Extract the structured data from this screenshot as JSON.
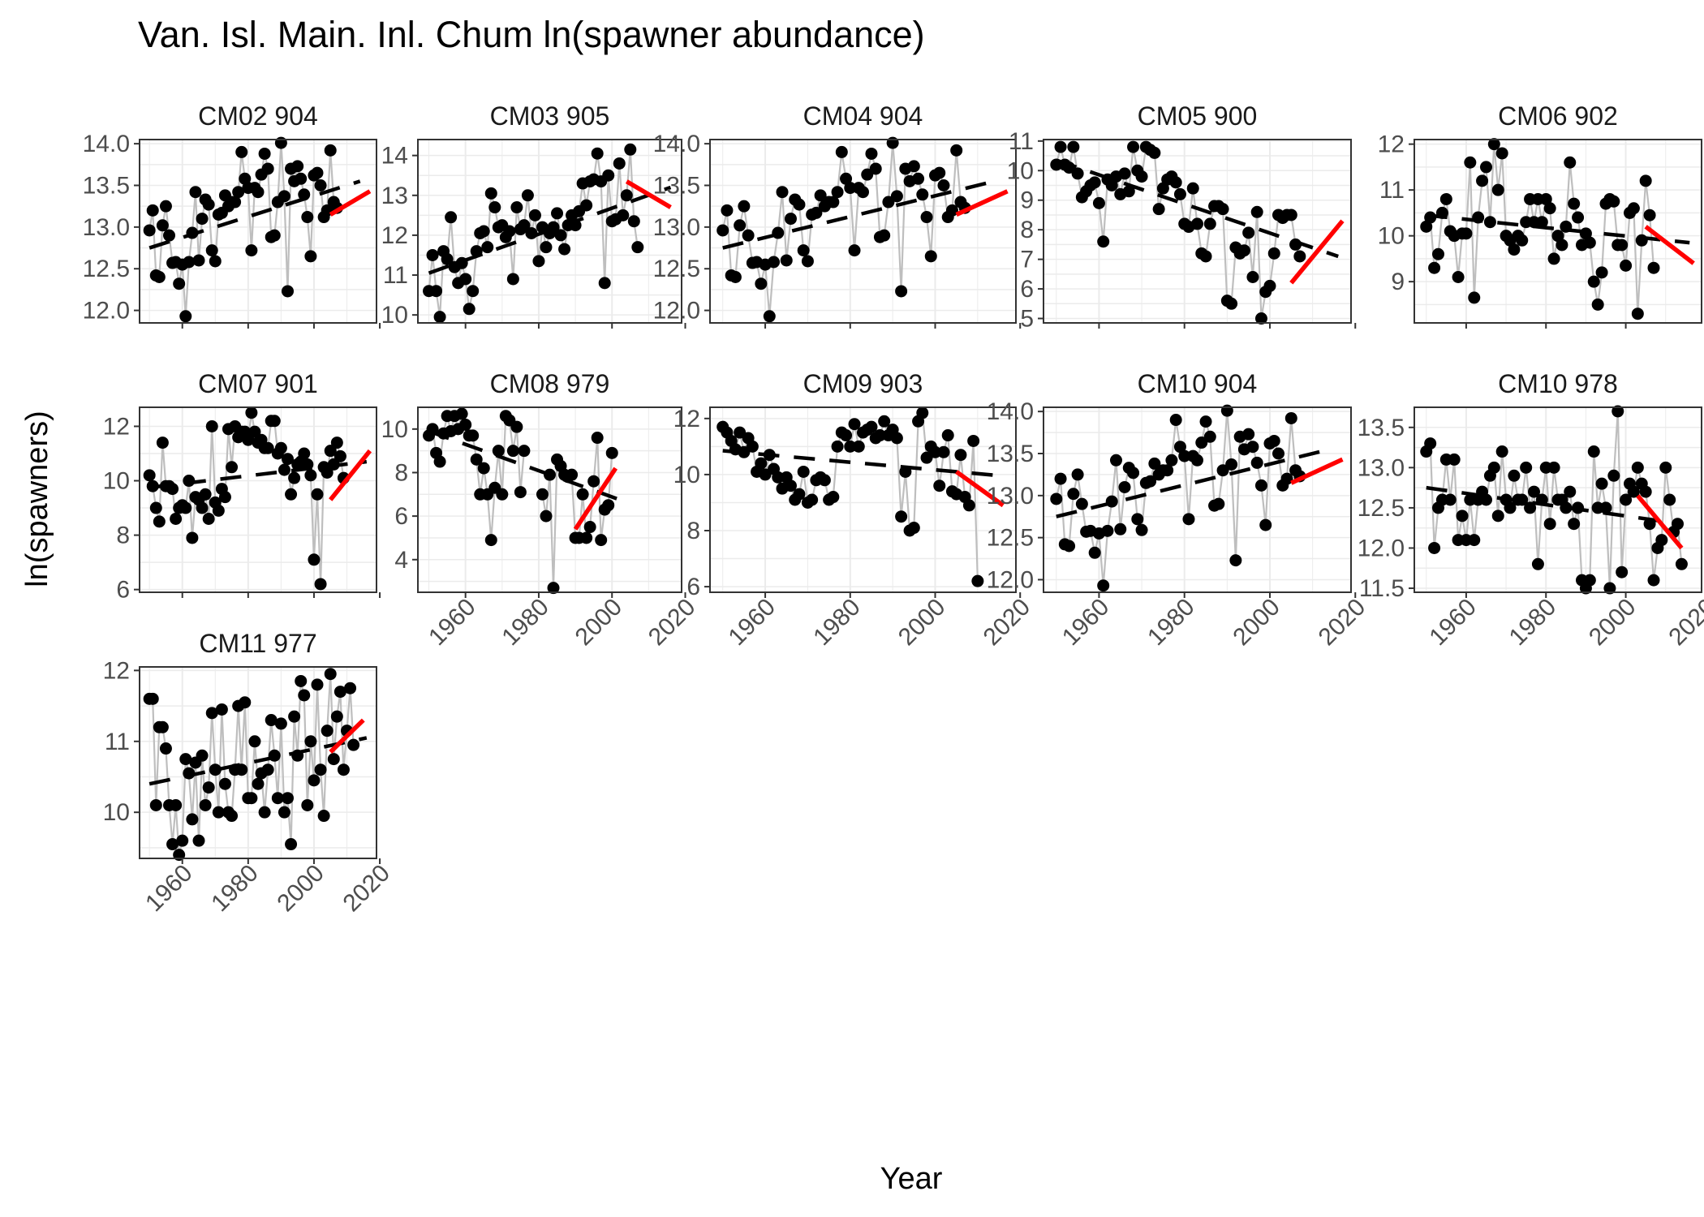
{
  "figure": {
    "title": "Van. Isl. Main. Inl. Chum ln(spawner abundance)",
    "xlabel": "Year",
    "ylabel": "ln(spawners)",
    "x_ticks": [
      1960,
      1980,
      2000,
      2020
    ],
    "colors": {
      "points": "#000000",
      "connector": "#bebebe",
      "grid": "#ebebeb",
      "panel_border": "#333333",
      "long_term_trend": "#000000",
      "recent_trend": "#ff0000"
    }
  },
  "chart_data": [
    {
      "type": "scatter",
      "title": "CM02 904",
      "xlim": [
        1947,
        2019
      ],
      "ylim": [
        11.85,
        14.05
      ],
      "yticks": [
        12.0,
        12.5,
        13.0,
        13.5,
        14.0
      ],
      "ytick_labels": [
        "12.0",
        "12.5",
        "13.0",
        "13.5",
        "14.0"
      ],
      "start_year": 1950,
      "values": [
        12.96,
        13.2,
        12.42,
        12.4,
        13.02,
        13.25,
        12.9,
        12.57,
        12.58,
        12.32,
        12.55,
        11.93,
        12.58,
        12.93,
        13.42,
        12.6,
        13.1,
        13.33,
        13.27,
        12.72,
        12.59,
        13.15,
        13.17,
        13.38,
        13.25,
        13.3,
        13.3,
        13.42,
        13.9,
        13.58,
        13.47,
        12.72,
        13.47,
        13.42,
        13.63,
        13.88,
        13.7,
        12.88,
        12.9,
        13.3,
        14.01,
        13.37,
        12.23,
        13.7,
        13.55,
        13.73,
        13.58,
        13.39,
        13.12,
        12.65,
        13.62,
        13.65,
        13.5,
        13.12,
        13.2,
        13.92,
        13.3,
        13.23
      ],
      "long_trend": [
        [
          1950,
          12.75
        ],
        [
          2014,
          13.55
        ]
      ],
      "recent_trend": [
        [
          2005,
          13.15
        ],
        [
          2017,
          13.43
        ]
      ]
    },
    {
      "type": "scatter",
      "title": "CM03 905",
      "xlim": [
        1947,
        2019
      ],
      "ylim": [
        9.8,
        14.4
      ],
      "yticks": [
        10,
        11,
        12,
        13,
        14
      ],
      "ytick_labels": [
        "10",
        "11",
        "12",
        "13",
        "14"
      ],
      "start_year": 1950,
      "values": [
        10.6,
        11.5,
        10.6,
        9.95,
        11.6,
        11.4,
        12.45,
        11.2,
        10.8,
        11.3,
        10.9,
        10.15,
        10.6,
        11.6,
        12.05,
        12.1,
        11.7,
        13.05,
        12.7,
        12.2,
        12.25,
        11.95,
        12.1,
        10.9,
        12.7,
        12.15,
        12.25,
        13.0,
        12.05,
        12.5,
        11.35,
        12.2,
        11.7,
        12.05,
        12.2,
        12.55,
        12.0,
        11.65,
        12.25,
        12.5,
        12.25,
        12.6,
        13.3,
        12.75,
        13.35,
        13.4,
        14.05,
        13.35,
        10.8,
        13.5,
        12.35,
        12.4,
        13.8,
        12.5,
        13.0,
        14.15,
        12.35,
        11.7
      ],
      "long_trend": [
        [
          1950,
          11.05
        ],
        [
          2016,
          13.2
        ]
      ],
      "recent_trend": [
        [
          2004,
          13.35
        ],
        [
          2016,
          12.7
        ]
      ]
    },
    {
      "type": "scatter",
      "title": "CM04 904",
      "xlim": [
        1947,
        2019
      ],
      "ylim": [
        11.85,
        14.05
      ],
      "yticks": [
        12.0,
        12.5,
        13.0,
        13.5,
        14.0
      ],
      "ytick_labels": [
        "12.0",
        "12.5",
        "13.0",
        "13.5",
        "14.0"
      ],
      "start_year": 1950,
      "values": [
        12.96,
        13.2,
        12.42,
        12.4,
        13.02,
        13.25,
        12.9,
        12.57,
        12.58,
        12.32,
        12.55,
        11.93,
        12.58,
        12.93,
        13.42,
        12.6,
        13.1,
        13.33,
        13.27,
        12.72,
        12.59,
        13.15,
        13.17,
        13.38,
        13.25,
        13.3,
        13.3,
        13.42,
        13.9,
        13.58,
        13.47,
        12.72,
        13.47,
        13.42,
        13.63,
        13.88,
        13.7,
        12.88,
        12.9,
        13.3,
        14.01,
        13.37,
        12.23,
        13.7,
        13.55,
        13.73,
        13.58,
        13.39,
        13.12,
        12.65,
        13.62,
        13.65,
        13.5,
        13.12,
        13.2,
        13.92,
        13.3,
        13.23
      ],
      "long_trend": [
        [
          1950,
          12.75
        ],
        [
          2014,
          13.55
        ]
      ],
      "recent_trend": [
        [
          2005,
          13.15
        ],
        [
          2017,
          13.43
        ]
      ]
    },
    {
      "type": "scatter",
      "title": "CM05 900",
      "xlim": [
        1947,
        2019
      ],
      "ylim": [
        4.85,
        11.05
      ],
      "yticks": [
        5,
        6,
        7,
        8,
        9,
        10,
        11
      ],
      "ytick_labels": [
        "5",
        "6",
        "7",
        "8",
        "9",
        "10",
        "11"
      ],
      "start_year": 1950,
      "values": [
        10.2,
        10.8,
        10.2,
        10.1,
        10.8,
        9.9,
        9.1,
        9.3,
        9.5,
        9.6,
        8.9,
        7.6,
        9.7,
        9.5,
        9.8,
        9.2,
        9.9,
        9.3,
        10.8,
        10.0,
        9.8,
        10.8,
        10.7,
        10.6,
        8.7,
        9.4,
        9.7,
        9.8,
        9.6,
        9.2,
        8.2,
        8.1,
        9.4,
        8.2,
        7.2,
        7.1,
        8.2,
        8.8,
        8.8,
        8.7,
        5.6,
        5.5,
        7.4,
        7.2,
        7.3,
        7.9,
        6.4,
        8.6,
        5.0,
        5.9,
        6.1,
        7.2,
        8.5,
        8.4,
        8.5,
        8.5,
        7.5,
        7.1
      ],
      "long_trend": [
        [
          1950,
          10.35
        ],
        [
          2016,
          7.1
        ]
      ],
      "recent_trend": [
        [
          2005,
          6.2
        ],
        [
          2017,
          8.3
        ]
      ]
    },
    {
      "type": "scatter",
      "title": "CM06 902",
      "xlim": [
        1947,
        2019
      ],
      "ylim": [
        8.1,
        12.1
      ],
      "yticks": [
        9,
        10,
        11,
        12
      ],
      "ytick_labels": [
        "9",
        "10",
        "11",
        "12"
      ],
      "start_year": 1950,
      "values": [
        10.2,
        10.4,
        9.3,
        9.6,
        10.5,
        10.8,
        10.1,
        10.0,
        9.1,
        10.05,
        10.05,
        11.6,
        8.65,
        10.4,
        11.2,
        11.5,
        10.3,
        12.0,
        11.0,
        11.8,
        10.0,
        9.9,
        9.7,
        10.0,
        9.9,
        10.3,
        10.8,
        10.3,
        10.8,
        10.3,
        10.8,
        10.6,
        9.5,
        10.0,
        9.8,
        10.2,
        11.6,
        10.7,
        10.4,
        9.8,
        10.05,
        9.85,
        9.0,
        8.5,
        9.2,
        10.7,
        10.8,
        10.75,
        9.8,
        9.8,
        9.35,
        10.5,
        10.6,
        8.3,
        9.9,
        11.2,
        10.45,
        9.3
      ],
      "long_trend": [
        [
          1950,
          10.45
        ],
        [
          2016,
          9.85
        ]
      ],
      "recent_trend": [
        [
          2005,
          10.2
        ],
        [
          2017,
          9.4
        ]
      ]
    },
    {
      "type": "scatter",
      "title": "CM07 901",
      "xlim": [
        1947,
        2019
      ],
      "ylim": [
        5.9,
        12.7
      ],
      "yticks": [
        6,
        8,
        10,
        12
      ],
      "ytick_labels": [
        "6",
        "8",
        "10",
        "12"
      ],
      "start_year": 1950,
      "values": [
        10.2,
        9.8,
        9.0,
        8.5,
        11.4,
        9.8,
        9.8,
        9.7,
        8.6,
        9.0,
        9.1,
        9.0,
        10.0,
        7.9,
        9.4,
        9.3,
        9.0,
        9.5,
        8.6,
        12.0,
        9.2,
        8.9,
        9.7,
        9.4,
        11.9,
        10.5,
        12.0,
        11.6,
        11.8,
        11.8,
        11.5,
        12.5,
        11.8,
        11.4,
        11.5,
        11.2,
        11.2,
        12.2,
        12.2,
        11.0,
        11.2,
        10.4,
        10.8,
        9.5,
        10.1,
        10.6,
        10.7,
        11.0,
        10.6,
        10.2,
        7.1,
        9.5,
        6.2,
        10.5,
        10.3,
        11.1,
        10.6,
        11.4,
        10.9,
        10.1
      ],
      "long_trend": [
        [
          1950,
          9.75
        ],
        [
          2016,
          10.7
        ]
      ],
      "recent_trend": [
        [
          2005,
          9.3
        ],
        [
          2017,
          11.1
        ]
      ]
    },
    {
      "type": "scatter",
      "title": "CM08 979",
      "xlim": [
        1947,
        2019
      ],
      "ylim": [
        2.5,
        11.0
      ],
      "yticks": [
        4,
        6,
        8,
        10
      ],
      "ytick_labels": [
        "4",
        "6",
        "8",
        "10"
      ],
      "start_year": 1950,
      "values": [
        9.7,
        10.0,
        8.9,
        8.5,
        9.8,
        10.6,
        9.9,
        10.6,
        10.0,
        10.7,
        10.2,
        9.7,
        9.7,
        8.6,
        7.0,
        8.2,
        7.0,
        4.9,
        7.3,
        9.0,
        7.0,
        10.6,
        10.4,
        9.0,
        10.1,
        7.1,
        9.0,
        null,
        null,
        null,
        null,
        7.0,
        6.0,
        7.9,
        2.7,
        8.6,
        8.3,
        7.9,
        7.8,
        7.9,
        5.0,
        5.0,
        7.0,
        5.0,
        5.5,
        7.6,
        9.6,
        4.9,
        6.3,
        6.5,
        8.9
      ],
      "long_trend": [
        [
          1950,
          9.9
        ],
        [
          2003,
          6.7
        ]
      ],
      "recent_trend": [
        [
          1990,
          5.4
        ],
        [
          2001,
          8.2
        ]
      ]
    },
    {
      "type": "scatter",
      "title": "CM09 903",
      "xlim": [
        1947,
        2019
      ],
      "ylim": [
        5.8,
        12.4
      ],
      "yticks": [
        6,
        8,
        10,
        12
      ],
      "ytick_labels": [
        "6",
        "8",
        "10",
        "12"
      ],
      "start_year": 1950,
      "values": [
        11.7,
        11.5,
        11.2,
        10.9,
        11.5,
        10.8,
        11.3,
        11.0,
        10.1,
        10.4,
        10.0,
        10.7,
        10.2,
        9.9,
        9.5,
        9.9,
        9.6,
        9.1,
        9.3,
        10.1,
        9.0,
        9.1,
        9.8,
        9.9,
        9.8,
        9.1,
        9.2,
        11.0,
        11.5,
        11.4,
        11.0,
        11.8,
        11.0,
        11.5,
        11.6,
        11.7,
        11.3,
        11.4,
        11.9,
        11.4,
        11.6,
        11.3,
        8.5,
        10.1,
        8.0,
        8.1,
        11.9,
        12.2,
        10.6,
        11.0,
        10.8,
        9.6,
        10.8,
        11.4,
        9.4,
        9.3,
        10.7,
        9.2,
        8.9,
        11.2,
        6.2
      ],
      "long_trend": [
        [
          1950,
          10.85
        ],
        [
          2016,
          9.95
        ]
      ],
      "recent_trend": [
        [
          2005,
          10.1
        ],
        [
          2016,
          8.9
        ]
      ]
    },
    {
      "type": "scatter",
      "title": "CM10 904",
      "xlim": [
        1947,
        2019
      ],
      "ylim": [
        11.85,
        14.05
      ],
      "yticks": [
        12.0,
        12.5,
        13.0,
        13.5,
        14.0
      ],
      "ytick_labels": [
        "12.0",
        "12.5",
        "13.0",
        "13.5",
        "14.0"
      ],
      "start_year": 1950,
      "values": [
        12.96,
        13.2,
        12.42,
        12.4,
        13.02,
        13.25,
        12.9,
        12.57,
        12.58,
        12.32,
        12.55,
        11.93,
        12.58,
        12.93,
        13.42,
        12.6,
        13.1,
        13.33,
        13.27,
        12.72,
        12.59,
        13.15,
        13.17,
        13.38,
        13.25,
        13.3,
        13.3,
        13.42,
        13.9,
        13.58,
        13.47,
        12.72,
        13.47,
        13.42,
        13.63,
        13.88,
        13.7,
        12.88,
        12.9,
        13.3,
        14.01,
        13.37,
        12.23,
        13.7,
        13.55,
        13.73,
        13.58,
        13.39,
        13.12,
        12.65,
        13.62,
        13.65,
        13.5,
        13.12,
        13.2,
        13.92,
        13.3,
        13.23
      ],
      "long_trend": [
        [
          1950,
          12.75
        ],
        [
          2014,
          13.55
        ]
      ],
      "recent_trend": [
        [
          2005,
          13.15
        ],
        [
          2017,
          13.43
        ]
      ]
    },
    {
      "type": "scatter",
      "title": "CM10 978",
      "xlim": [
        1947,
        2019
      ],
      "ylim": [
        11.45,
        13.75
      ],
      "yticks": [
        11.5,
        12.0,
        12.5,
        13.0,
        13.5
      ],
      "ytick_labels": [
        "11.5",
        "12.0",
        "12.5",
        "13.0",
        "13.5"
      ],
      "start_year": 1950,
      "values": [
        13.2,
        13.3,
        12.0,
        12.5,
        12.6,
        13.1,
        12.6,
        13.1,
        12.1,
        12.4,
        12.1,
        12.6,
        12.1,
        12.6,
        12.7,
        12.6,
        12.9,
        13.0,
        12.4,
        13.2,
        12.6,
        12.5,
        12.9,
        12.6,
        12.6,
        13.0,
        12.5,
        12.7,
        11.8,
        12.6,
        13.0,
        12.3,
        13.0,
        12.6,
        12.6,
        12.5,
        12.7,
        12.3,
        12.5,
        11.6,
        11.5,
        11.6,
        13.2,
        12.5,
        12.8,
        12.5,
        11.5,
        12.9,
        13.7,
        11.7,
        12.6,
        12.8,
        12.7,
        13.0,
        12.8,
        12.7,
        12.3,
        11.6,
        12.0,
        12.1,
        13.0,
        12.6,
        12.2,
        12.3,
        11.8
      ],
      "long_trend": [
        [
          1950,
          12.75
        ],
        [
          2014,
          12.3
        ]
      ],
      "recent_trend": [
        [
          2003,
          12.65
        ],
        [
          2014,
          12.0
        ]
      ]
    },
    {
      "type": "scatter",
      "title": "CM11 977",
      "xlim": [
        1947,
        2019
      ],
      "ylim": [
        9.35,
        12.05
      ],
      "yticks": [
        10,
        11,
        12
      ],
      "ytick_labels": [
        "10",
        "11",
        "12"
      ],
      "start_year": 1950,
      "values": [
        11.6,
        11.6,
        10.1,
        11.2,
        11.2,
        10.9,
        10.1,
        9.55,
        10.1,
        9.4,
        9.6,
        10.75,
        10.55,
        9.9,
        10.7,
        9.6,
        10.8,
        10.1,
        10.35,
        11.4,
        10.6,
        10.0,
        11.45,
        10.4,
        10.0,
        9.95,
        10.6,
        11.5,
        10.6,
        11.55,
        10.2,
        10.2,
        11.0,
        10.4,
        10.55,
        10.0,
        10.6,
        11.3,
        10.8,
        10.2,
        11.25,
        10.0,
        10.2,
        9.55,
        11.35,
        10.8,
        11.85,
        11.65,
        10.1,
        11.0,
        10.45,
        11.8,
        10.6,
        9.95,
        11.15,
        11.95,
        10.75,
        11.35,
        11.7,
        10.6,
        11.15,
        11.75,
        10.95
      ],
      "long_trend": [
        [
          1950,
          10.4
        ],
        [
          2016,
          11.05
        ]
      ],
      "recent_trend": [
        [
          2005,
          10.85
        ],
        [
          2015,
          11.3
        ]
      ]
    }
  ]
}
